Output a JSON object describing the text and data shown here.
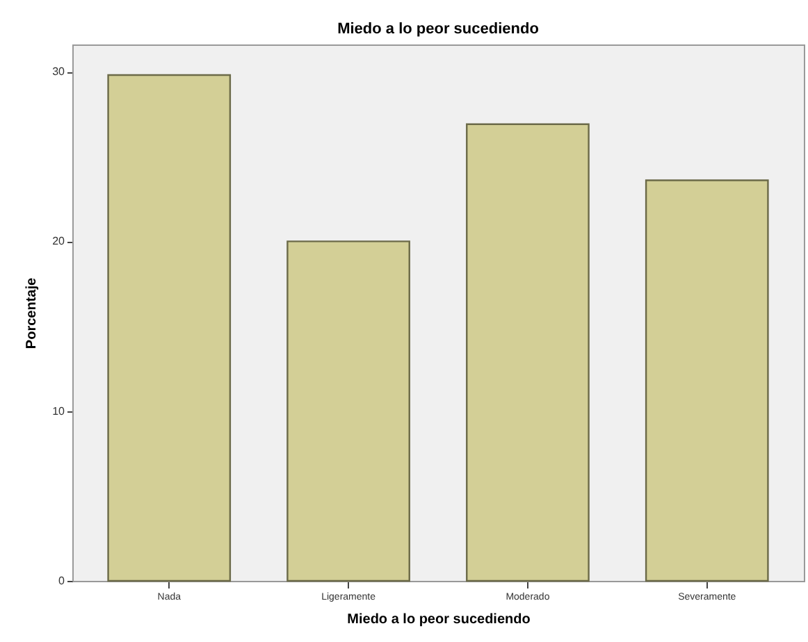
{
  "chart_data": {
    "type": "bar",
    "title": "Miedo a lo peor sucediendo",
    "xlabel": "Miedo a lo peor sucediendo",
    "ylabel": "Porcentaje",
    "categories": [
      "Nada",
      "Ligeramente",
      "Moderado",
      "Severamente"
    ],
    "values": [
      29.8,
      20.0,
      26.9,
      23.6
    ],
    "color": "#d3cf96",
    "ylim": [
      0,
      31.6
    ],
    "yticks": [
      0,
      10,
      20,
      30
    ],
    "grid": false
  }
}
